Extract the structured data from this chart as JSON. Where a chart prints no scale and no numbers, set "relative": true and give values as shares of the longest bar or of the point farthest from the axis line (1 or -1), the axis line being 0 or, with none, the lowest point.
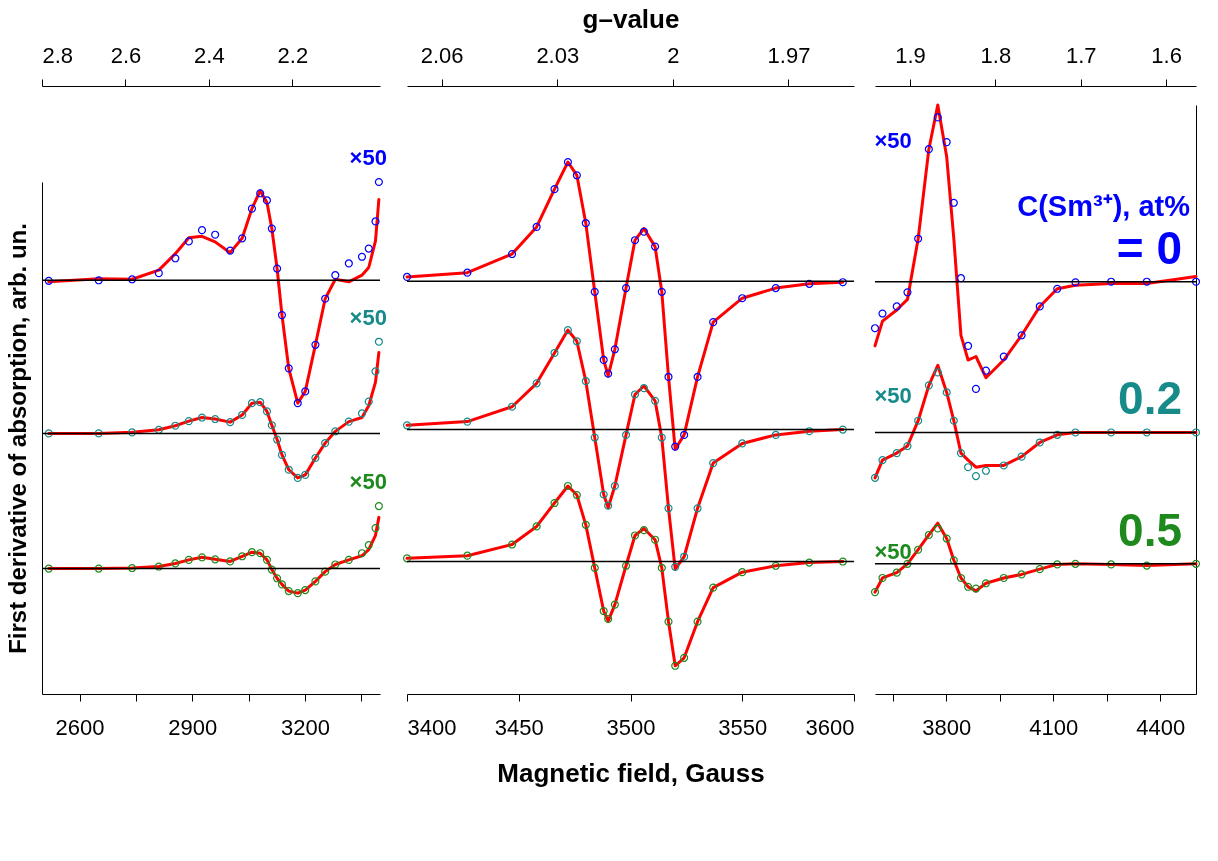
{
  "chart_data": [
    {
      "type": "scatter",
      "ylabel": "First derivative of absorption, arb. un.",
      "relative": true,
      "marker": "circle",
      "xlim": [
        2500,
        3400
      ],
      "xticks": [
        2600,
        {
          "value": 2750,
          "label": null
        },
        2900,
        {
          "value": 3050,
          "label": null
        },
        3200,
        {
          "value": 3350,
          "label": null
        }
      ],
      "x2lim": [
        2.8,
        1.99
      ],
      "x2ticks": [
        2.8,
        2.6,
        2.4,
        2.2
      ],
      "x": [
        2518,
        2651,
        2740,
        2811,
        2855,
        2891,
        2926,
        2961,
        3001,
        3033,
        3059,
        3081,
        3099,
        3112,
        3126,
        3139,
        3157,
        3181,
        3201,
        3228,
        3254,
        3281,
        3317,
        3352,
        3370,
        3388,
        3397
      ],
      "series": [
        {
          "type": "line",
          "marker": "none",
          "color": "#ff0000",
          "values": [
            0.805,
            0.811,
            0.81,
            0.828,
            0.86,
            0.891,
            0.894,
            0.883,
            0.862,
            0.89,
            0.948,
            0.983,
            0.96,
            0.909,
            0.831,
            0.74,
            0.636,
            0.568,
            0.591,
            0.682,
            0.772,
            0.81,
            0.805,
            0.818,
            0.833,
            0.885,
            0.966
          ]
        },
        {
          "type": "line",
          "marker": "none",
          "color": "#ff0000",
          "values": [
            0.509,
            0.509,
            0.511,
            0.516,
            0.524,
            0.533,
            0.54,
            0.537,
            0.531,
            0.545,
            0.568,
            0.57,
            0.552,
            0.525,
            0.497,
            0.467,
            0.438,
            0.422,
            0.428,
            0.461,
            0.49,
            0.513,
            0.532,
            0.54,
            0.563,
            0.609,
            0.667
          ]
        },
        {
          "type": "line",
          "marker": "none",
          "color": "#ff0000",
          "values": [
            0.245,
            0.245,
            0.246,
            0.249,
            0.255,
            0.262,
            0.267,
            0.263,
            0.259,
            0.269,
            0.277,
            0.275,
            0.262,
            0.243,
            0.226,
            0.214,
            0.201,
            0.197,
            0.203,
            0.22,
            0.239,
            0.253,
            0.262,
            0.27,
            0.282,
            0.31,
            0.345
          ]
        },
        {
          "color": "#0000ff",
          "values": [
            0.807,
            0.808,
            0.81,
            0.822,
            0.851,
            0.884,
            0.906,
            0.897,
            0.866,
            0.89,
            0.948,
            0.978,
            0.964,
            0.909,
            0.831,
            0.74,
            0.636,
            0.568,
            0.591,
            0.682,
            0.772,
            0.818,
            0.841,
            0.854,
            0.87,
            0.923,
            1
          ]
        },
        {
          "color": "#178a8a",
          "values": [
            0.509,
            0.509,
            0.511,
            0.516,
            0.524,
            0.533,
            0.54,
            0.537,
            0.531,
            0.545,
            0.568,
            0.57,
            0.552,
            0.525,
            0.497,
            0.467,
            0.438,
            0.422,
            0.428,
            0.461,
            0.49,
            0.513,
            0.532,
            0.548,
            0.571,
            0.63,
            0.688
          ]
        },
        {
          "color": "#1e8a1e",
          "values": [
            0.245,
            0.245,
            0.246,
            0.249,
            0.255,
            0.262,
            0.267,
            0.263,
            0.259,
            0.269,
            0.277,
            0.275,
            0.262,
            0.243,
            0.226,
            0.214,
            0.201,
            0.197,
            0.203,
            0.22,
            0.239,
            0.253,
            0.262,
            0.275,
            0.291,
            0.324,
            0.367
          ]
        }
      ],
      "ref_lines": [
        {
          "axis": "y",
          "value": 0.808,
          "color": "#000000"
        },
        {
          "axis": "y",
          "value": 0.509,
          "color": "#000000"
        },
        {
          "axis": "y",
          "value": 0.245,
          "color": "#000000"
        }
      ],
      "annotations": [
        "×50",
        "×50",
        "×50"
      ]
    },
    {
      "type": "scatter",
      "xlabel": "Magnetic field, Gauss",
      "x2label": "g–value",
      "relative": true,
      "marker": "circle",
      "xlim": [
        3400,
        3600
      ],
      "xticks": [
        3400,
        3450,
        3500,
        3550,
        3600
      ],
      "x2lim": [
        2.069,
        1.953
      ],
      "x2ticks": [
        2.06,
        2.03,
        2,
        1.97
      ],
      "x": [
        3400,
        3427,
        3447,
        3458,
        3466,
        3472,
        3476,
        3480,
        3484,
        3488,
        3490,
        3493,
        3498,
        3502,
        3506,
        3511,
        3514,
        3517,
        3520,
        3524,
        3530,
        3537,
        3550,
        3565,
        3580,
        3595
      ],
      "series": [
        {
          "type": "line",
          "marker": "none",
          "color": "#ff0000",
          "values": [
            0.784,
            0.792,
            0.827,
            0.878,
            0.949,
            1,
            0.975,
            0.885,
            0.756,
            0.628,
            0.598,
            0.648,
            0.763,
            0.853,
            0.875,
            0.841,
            0.756,
            0.596,
            0.46,
            0.487,
            0.596,
            0.699,
            0.744,
            0.763,
            0.771,
            0.774
          ]
        },
        {
          "type": "line",
          "marker": "none",
          "color": "#ff0000",
          "values": [
            0.505,
            0.512,
            0.54,
            0.584,
            0.641,
            0.684,
            0.663,
            0.588,
            0.482,
            0.375,
            0.35,
            0.391,
            0.487,
            0.563,
            0.579,
            0.551,
            0.482,
            0.349,
            0.235,
            0.258,
            0.349,
            0.434,
            0.471,
            0.487,
            0.494,
            0.497
          ]
        },
        {
          "type": "line",
          "marker": "none",
          "color": "#ff0000",
          "values": [
            0.255,
            0.26,
            0.281,
            0.315,
            0.359,
            0.391,
            0.374,
            0.318,
            0.237,
            0.156,
            0.137,
            0.168,
            0.241,
            0.298,
            0.311,
            0.29,
            0.237,
            0.136,
            0.053,
            0.068,
            0.136,
            0.2,
            0.229,
            0.241,
            0.247,
            0.249
          ]
        },
        {
          "color": "#0000ff",
          "values": [
            0.784,
            0.792,
            0.827,
            0.878,
            0.949,
            1,
            0.975,
            0.885,
            0.756,
            0.628,
            0.602,
            0.648,
            0.763,
            0.853,
            0.869,
            0.841,
            0.756,
            0.596,
            0.465,
            0.487,
            0.596,
            0.699,
            0.744,
            0.763,
            0.771,
            0.774
          ]
        },
        {
          "color": "#178a8a",
          "values": [
            0.505,
            0.512,
            0.54,
            0.584,
            0.641,
            0.684,
            0.663,
            0.588,
            0.482,
            0.375,
            0.354,
            0.391,
            0.487,
            0.563,
            0.575,
            0.551,
            0.482,
            0.349,
            0.239,
            0.258,
            0.349,
            0.434,
            0.471,
            0.487,
            0.494,
            0.497
          ]
        },
        {
          "color": "#1e8a1e",
          "values": [
            0.255,
            0.26,
            0.281,
            0.315,
            0.359,
            0.391,
            0.374,
            0.318,
            0.237,
            0.156,
            0.141,
            0.168,
            0.241,
            0.298,
            0.308,
            0.29,
            0.237,
            0.136,
            0.053,
            0.068,
            0.136,
            0.2,
            0.229,
            0.241,
            0.247,
            0.249
          ]
        }
      ],
      "ref_lines": [
        {
          "axis": "y",
          "value": 0.776,
          "color": "#000000"
        },
        {
          "axis": "y",
          "value": 0.497,
          "color": "#000000"
        },
        {
          "axis": "y",
          "value": 0.249,
          "color": "#000000"
        }
      ]
    },
    {
      "type": "scatter",
      "legend_title": "C(Sm³⁺), at%",
      "relative": true,
      "marker": "circle",
      "xlim": [
        3600,
        4500
      ],
      "xticks": [
        {
          "value": 3650,
          "label": null
        },
        3800,
        {
          "value": 3950,
          "label": null
        },
        4100,
        {
          "value": 4250,
          "label": null
        },
        4400
      ],
      "x2lim": [
        1.941,
        1.565
      ],
      "x2ticks": [
        1.9,
        1.8,
        1.7,
        1.6
      ],
      "x": [
        3600,
        3621,
        3661,
        3691,
        3721,
        3751,
        3776,
        3801,
        3821,
        3841,
        3861,
        3883,
        3911,
        3961,
        4011,
        4062,
        4111,
        4162,
        4262,
        4362,
        4500
      ],
      "series": [
        {
          "type": "line",
          "marker": "none",
          "color": "#ff0000",
          "values": [
            0.591,
            0.633,
            0.652,
            0.67,
            0.773,
            0.925,
            1,
            0.912,
            0.773,
            0.609,
            0.567,
            0.573,
            0.537,
            0.567,
            0.609,
            0.658,
            0.688,
            0.694,
            0.697,
            0.697,
            0.709
          ]
        },
        {
          "type": "line",
          "marker": "none",
          "color": "#ff0000",
          "values": [
            0.367,
            0.397,
            0.409,
            0.421,
            0.464,
            0.524,
            0.558,
            0.512,
            0.464,
            0.409,
            0.397,
            0.385,
            0.388,
            0.388,
            0.403,
            0.427,
            0.44,
            0.444,
            0.444,
            0.444,
            0.444
          ]
        },
        {
          "type": "line",
          "marker": "none",
          "color": "#ff0000",
          "values": [
            0.173,
            0.197,
            0.206,
            0.221,
            0.245,
            0.27,
            0.29,
            0.264,
            0.227,
            0.197,
            0.182,
            0.175,
            0.188,
            0.197,
            0.203,
            0.212,
            0.22,
            0.221,
            0.22,
            0.218,
            0.221
          ]
        },
        {
          "name": "= 0",
          "color": "#0000ff",
          "values": [
            0.621,
            0.646,
            0.658,
            0.682,
            0.773,
            0.925,
            0.979,
            0.937,
            0.834,
            0.706,
            0.591,
            0.518,
            0.549,
            0.573,
            0.609,
            0.658,
            0.688,
            0.699,
            0.7,
            0.7,
            0.7
          ]
        },
        {
          "name": "0.2",
          "color": "#178a8a",
          "values": [
            0.367,
            0.397,
            0.409,
            0.421,
            0.464,
            0.524,
            0.546,
            0.512,
            0.464,
            0.409,
            0.385,
            0.37,
            0.379,
            0.388,
            0.403,
            0.427,
            0.44,
            0.444,
            0.444,
            0.444,
            0.444
          ]
        },
        {
          "name": "0.5",
          "color": "#1e8a1e",
          "values": [
            0.173,
            0.197,
            0.206,
            0.221,
            0.245,
            0.27,
            0.281,
            0.264,
            0.227,
            0.197,
            0.182,
            0.179,
            0.188,
            0.197,
            0.203,
            0.212,
            0.22,
            0.221,
            0.22,
            0.218,
            0.221
          ]
        }
      ],
      "ref_lines": [
        {
          "axis": "y",
          "value": 0.7,
          "color": "#000000"
        },
        {
          "axis": "y",
          "value": 0.444,
          "color": "#000000"
        },
        {
          "axis": "y",
          "value": 0.221,
          "color": "#000000"
        }
      ],
      "annotations": [
        "×50",
        "×50",
        "×50"
      ]
    }
  ]
}
